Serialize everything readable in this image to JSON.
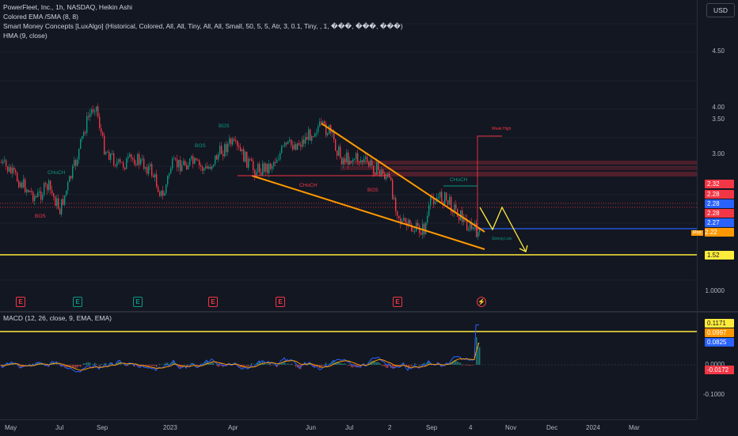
{
  "header": {
    "title_line": "PowerFleet, Inc., 1h, NASDAQ, Heikin Ashi",
    "indicators": [
      "Colored EMA /SMA (8, 8)",
      "Smart Money Concepts [LuxAlgo] (Historical, Colored, All, All, Tiny, All, All, Small, 50, 5, 5, Atr, 3, 0.1, Tiny, , 1, ���, ���, ���)",
      "HMA (9, close)"
    ],
    "macd_label": "MACD (12, 26, close, 9, EMA, EMA)"
  },
  "currency_button": "USD",
  "price_axis": {
    "ticks": [
      "4.50",
      "4.00",
      "3.50",
      "3.00",
      "1.0000"
    ],
    "tags": [
      {
        "label": "2.32",
        "color": "#f23645"
      },
      {
        "label": "2.28",
        "color": "#f23645"
      },
      {
        "label": "2.28",
        "color": "#2962ff"
      },
      {
        "label": "2.28",
        "color": "#f23645"
      },
      {
        "label": "2.27",
        "color": "#2962ff"
      },
      {
        "label": "2.22",
        "prefix": "Pre",
        "color": "#ff9800"
      },
      {
        "label": "1.52",
        "color": "#ffeb3b",
        "dark_text": true
      }
    ]
  },
  "macd_axis": {
    "ticks": [
      "0.0000",
      "-0.1000"
    ],
    "tags": [
      {
        "label": "0.1171",
        "color": "#ffeb3b",
        "dark_text": true
      },
      {
        "label": "0.0997",
        "color": "#ff9800"
      },
      {
        "label": "0.0825",
        "color": "#2962ff"
      },
      {
        "label": "-0.0172",
        "color": "#f23645"
      }
    ]
  },
  "time_axis": [
    "May",
    "Jul",
    "Sep",
    "2023",
    "Apr",
    "Jun",
    "Jul",
    "2",
    "Sep",
    "4",
    "Nov",
    "Dec",
    "2024",
    "Mar"
  ],
  "events": [
    {
      "type": "earn",
      "glyph": "E"
    },
    {
      "type": "div",
      "glyph": "E"
    },
    {
      "type": "div",
      "glyph": "E"
    },
    {
      "type": "earn",
      "glyph": "E"
    },
    {
      "type": "earn",
      "glyph": "E"
    },
    {
      "type": "earn",
      "glyph": "E"
    },
    {
      "type": "flash",
      "glyph": "⚡"
    }
  ],
  "smc_labels": {
    "choch_left": "CHoCH",
    "bos_left": "BOS",
    "bos_1": "BOS",
    "bos_2": "BOS",
    "choch_mid": "CHoCH",
    "bos_mid": "BOS",
    "choch_right": "CHoCH",
    "weak_high": "Weak High",
    "strong_low": "Strong Low"
  },
  "colors": {
    "background": "#131722",
    "bull": "#089981",
    "bear": "#f23645",
    "wedge": "#ff9800",
    "level": "#ffeb3b",
    "macd_line": "#2962ff",
    "signal_line": "#ff9800"
  }
}
